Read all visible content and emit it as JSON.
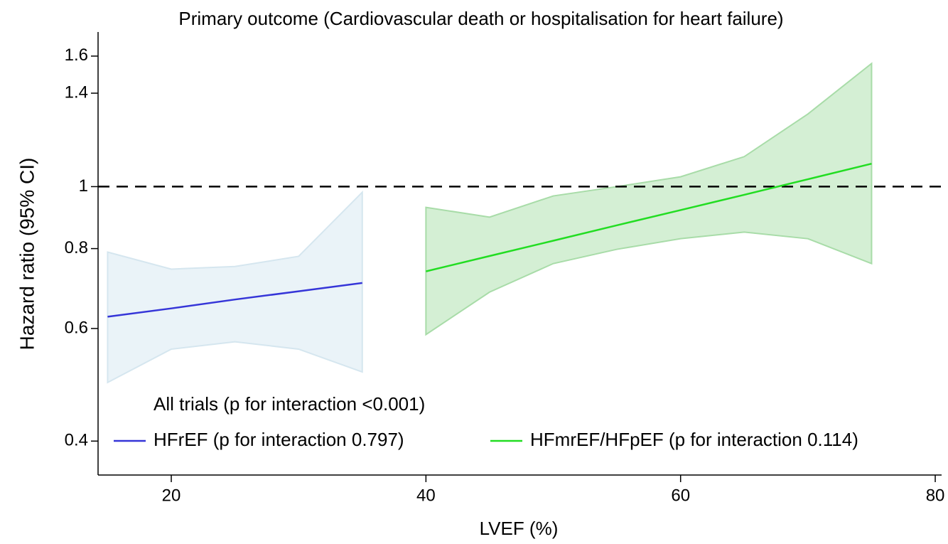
{
  "chart_data": {
    "type": "line",
    "title": "Primary outcome (Cardiovascular death or hospitalisation for heart failure)",
    "x_label": "LVEF (%)",
    "y_label": "Hazard ratio (95% CI)",
    "legend_title": "All trials (p for interaction <0.001)",
    "xlim": [
      14.25,
      80.5
    ],
    "xticks": [
      20,
      40,
      60,
      80
    ],
    "ylim": [
      0.354,
      1.745
    ],
    "yticks": [
      0.4,
      0.6,
      0.8,
      1,
      1.4,
      1.6
    ],
    "y_scale": "log",
    "reference_line": 1,
    "series": [
      {
        "name": "HFrEF (p for interaction 0.797)",
        "color": "#3535d8",
        "band_color": "#eaf3f8",
        "band_edge": "#d5e6ef",
        "x": [
          15,
          20,
          25,
          30,
          35
        ],
        "values": [
          0.626,
          0.645,
          0.666,
          0.686,
          0.707
        ],
        "upper": [
          0.79,
          0.743,
          0.75,
          0.778,
          0.98
        ],
        "lower": [
          0.494,
          0.557,
          0.572,
          0.557,
          0.513
        ]
      },
      {
        "name": "HFmrEF/HFpEF (p for interaction 0.114)",
        "color": "#22dd22",
        "band_color": "#d4efd4",
        "band_edge": "#a8dca8",
        "x": [
          40,
          45,
          50,
          55,
          60,
          65,
          70,
          75
        ],
        "values": [
          0.737,
          0.779,
          0.823,
          0.87,
          0.919,
          0.971,
          1.027,
          1.086
        ],
        "upper": [
          0.928,
          0.896,
          0.967,
          1.0,
          1.036,
          1.114,
          1.299,
          1.558
        ],
        "lower": [
          0.587,
          0.684,
          0.758,
          0.798,
          0.829,
          0.849,
          0.829,
          0.758
        ]
      }
    ]
  }
}
